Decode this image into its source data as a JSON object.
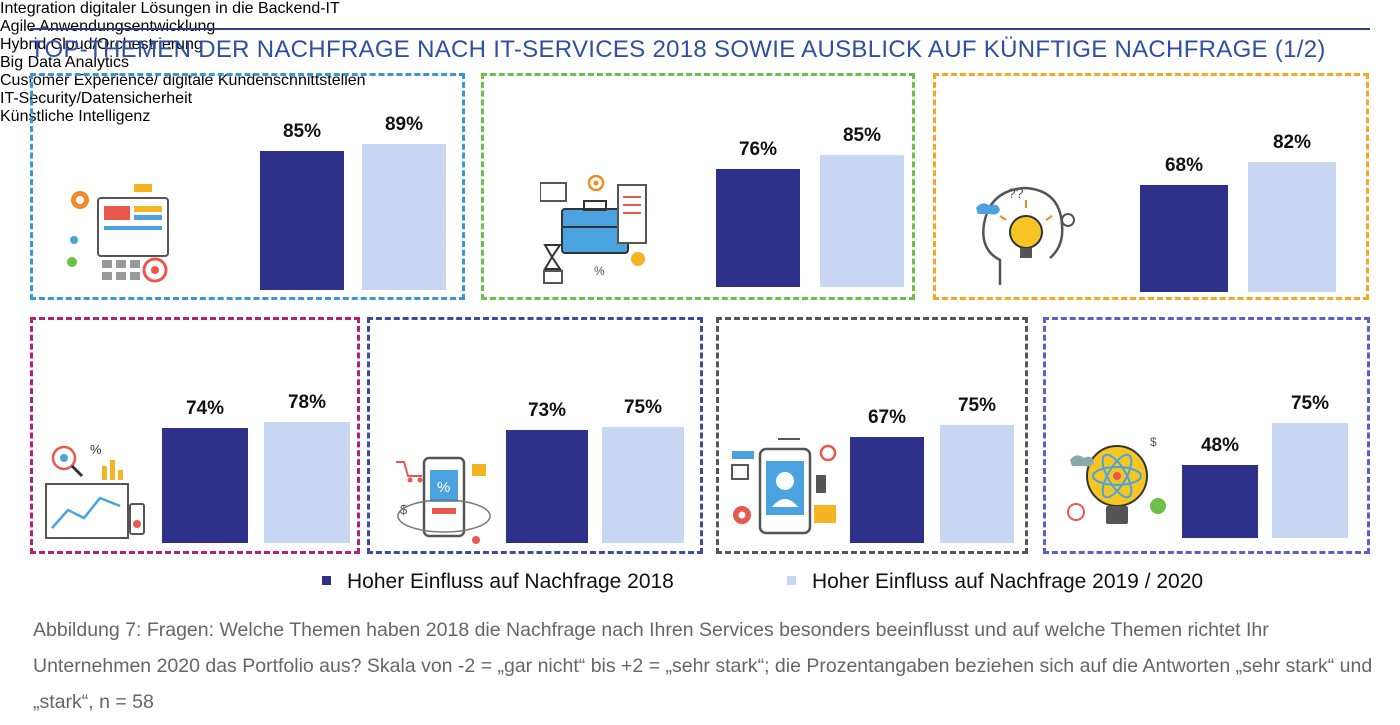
{
  "title": "TOP-THEMEN DER NACHFRAGE NACH IT-SERVICES 2018 SOWIE AUSBLICK AUF KÜNFTIGE NACHFRAGE (1/2)",
  "colors": {
    "series_2018": "#2e3189",
    "series_2020": "#c6d6f3",
    "title": "#2f4fa0"
  },
  "chart_data": {
    "type": "bar",
    "series": [
      {
        "name": "Hoher Einfluss auf Nachfrage 2018",
        "values": [
          85,
          76,
          68,
          74,
          73,
          67,
          48
        ]
      },
      {
        "name": "Hoher Einfluss auf Nachfrage 2019 / 2020",
        "values": [
          89,
          85,
          82,
          78,
          75,
          75,
          75
        ]
      }
    ],
    "panels": [
      {
        "title": "Integration digitaler Lösungen\nin die Backend-IT",
        "border_color": "#3a96d8",
        "icon": "integration-icon",
        "value_2018": 85,
        "value_2020": 89,
        "label_2018": "85%",
        "label_2020": "89%"
      },
      {
        "title": "Agile Anwendungsentwicklung",
        "border_color": "#6cc04a",
        "icon": "briefcase-icon",
        "value_2018": 76,
        "value_2020": 85,
        "label_2018": "76%",
        "label_2020": "85%"
      },
      {
        "title": "Hybrid Cloud/Orchestrierung",
        "border_color": "#f5a623",
        "icon": "lightbulb-head-icon",
        "value_2018": 68,
        "value_2020": 82,
        "label_2018": "68%",
        "label_2020": "82%"
      },
      {
        "title": "Big Data Analytics",
        "border_color": "#b5216e",
        "icon": "analytics-icon",
        "value_2018": 74,
        "value_2020": 78,
        "label_2018": "74%",
        "label_2020": "78%"
      },
      {
        "title": "Customer Experience/\ndigitale Kundenschnittstellen",
        "border_color": "#3d4a9e",
        "icon": "smartphone-shopping-icon",
        "value_2018": 73,
        "value_2020": 75,
        "label_2018": "73%",
        "label_2020": "75%"
      },
      {
        "title": "IT-Security/Datensicherheit",
        "border_color": "#555555",
        "icon": "security-phone-icon",
        "value_2018": 67,
        "value_2020": 75,
        "label_2018": "67%",
        "label_2020": "75%"
      },
      {
        "title": "Künstliche Intelligenz",
        "border_color": "#5b5fc7",
        "icon": "atom-bulb-icon",
        "value_2018": 48,
        "value_2020": 75,
        "label_2018": "48%",
        "label_2020": "75%"
      }
    ],
    "legend": [
      "Hoher Einfluss auf Nachfrage 2018",
      "Hoher Einfluss auf Nachfrage 2019 / 2020"
    ],
    "ylim": [
      0,
      100
    ],
    "grid": false,
    "legend_position": "bottom"
  },
  "caption": "Abbildung 7: Fragen: Welche Themen haben 2018 die Nachfrage nach Ihren Services besonders beeinflusst und auf welche Themen richtet Ihr Unternehmen 2020 das Portfolio aus? Skala von -2 = „gar nicht“ bis +2 = „sehr stark“; die Prozentangaben beziehen sich auf die Antworten „sehr stark“ und „stark“, n = 58"
}
